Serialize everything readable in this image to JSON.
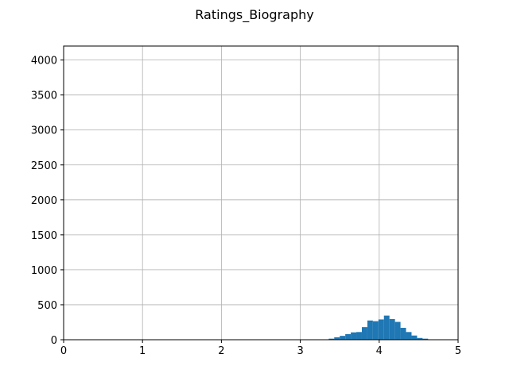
{
  "chart_data": {
    "type": "bar",
    "title": "Ratings_Biography",
    "xlabel": "",
    "ylabel": "",
    "xlim": [
      0,
      5
    ],
    "ylim": [
      0,
      4200
    ],
    "xticks": [
      "0",
      "1",
      "2",
      "3",
      "4",
      "5"
    ],
    "yticks": [
      "0",
      "500",
      "1000",
      "1500",
      "2000",
      "2500",
      "3000",
      "3500",
      "4000"
    ],
    "grid": true,
    "bar_color": "#1f77b4",
    "bins": [
      {
        "x0": 3.15,
        "x1": 3.22,
        "count": 2
      },
      {
        "x0": 3.29,
        "x1": 3.36,
        "count": 5
      },
      {
        "x0": 3.36,
        "x1": 3.43,
        "count": 15
      },
      {
        "x0": 3.43,
        "x1": 3.5,
        "count": 35
      },
      {
        "x0": 3.5,
        "x1": 3.57,
        "count": 55
      },
      {
        "x0": 3.57,
        "x1": 3.64,
        "count": 80
      },
      {
        "x0": 3.64,
        "x1": 3.71,
        "count": 105
      },
      {
        "x0": 3.71,
        "x1": 3.78,
        "count": 110
      },
      {
        "x0": 3.78,
        "x1": 3.85,
        "count": 180
      },
      {
        "x0": 3.85,
        "x1": 3.92,
        "count": 275
      },
      {
        "x0": 3.92,
        "x1": 3.99,
        "count": 265
      },
      {
        "x0": 3.99,
        "x1": 4.06,
        "count": 290
      },
      {
        "x0": 4.06,
        "x1": 4.13,
        "count": 345
      },
      {
        "x0": 4.13,
        "x1": 4.2,
        "count": 295
      },
      {
        "x0": 4.2,
        "x1": 4.27,
        "count": 255
      },
      {
        "x0": 4.27,
        "x1": 4.34,
        "count": 170
      },
      {
        "x0": 4.34,
        "x1": 4.41,
        "count": 110
      },
      {
        "x0": 4.41,
        "x1": 4.48,
        "count": 60
      },
      {
        "x0": 4.48,
        "x1": 4.55,
        "count": 25
      },
      {
        "x0": 4.55,
        "x1": 4.62,
        "count": 15
      },
      {
        "x0": 4.62,
        "x1": 4.69,
        "count": 5
      }
    ]
  }
}
